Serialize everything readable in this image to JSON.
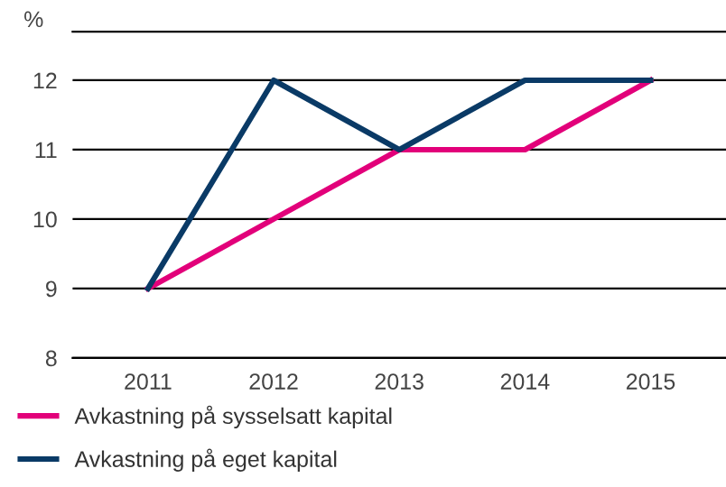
{
  "chart_data": {
    "type": "line",
    "ylabel": "%",
    "categories": [
      "2011",
      "2012",
      "2013",
      "2014",
      "2015"
    ],
    "series": [
      {
        "name": "Avkastning på sysselsatt kapital",
        "color": "#e2007a",
        "values": [
          9,
          10,
          11,
          11,
          12
        ]
      },
      {
        "name": "Avkastning på eget kapital",
        "color": "#0a3a66",
        "values": [
          9,
          12,
          11,
          12,
          12
        ]
      }
    ],
    "ylim": [
      8,
      12.7
    ],
    "yticks": [
      8,
      9,
      10,
      11,
      12
    ],
    "grid": "y",
    "legend": "bottom",
    "marker": "none",
    "line_style": "solid"
  }
}
